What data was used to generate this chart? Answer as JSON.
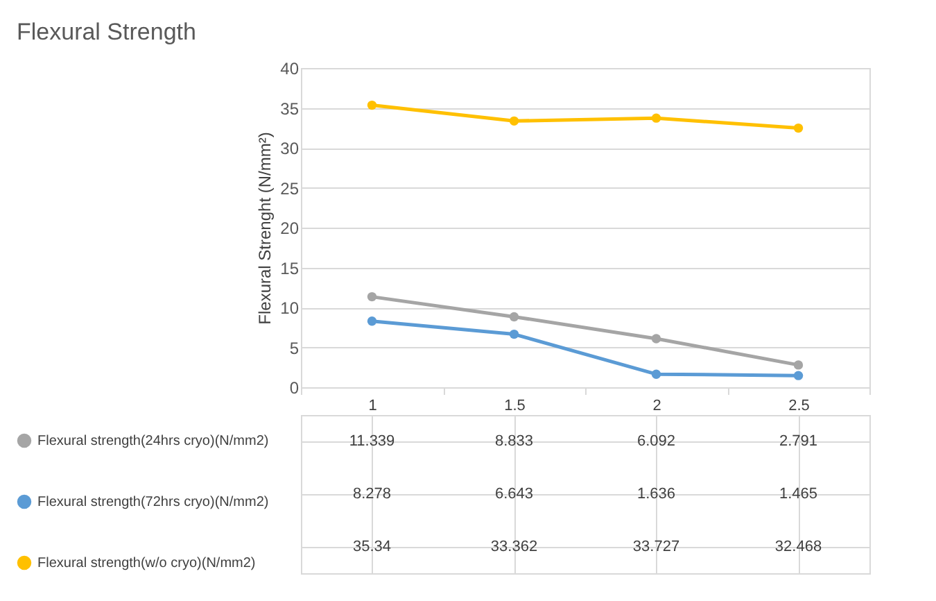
{
  "chart_data": {
    "type": "line",
    "title": "Flexural Strength",
    "ylabel": "Flexural Strenght (N/mm²)",
    "categories": [
      "1",
      "1.5",
      "2",
      "2.5"
    ],
    "series": [
      {
        "name": "Flexural strength(24hrs cryo)(N/mm2)",
        "color": "#a5a5a5",
        "values": [
          11.339,
          8.833,
          6.092,
          2.791
        ]
      },
      {
        "name": "Flexural strength(72hrs cryo)(N/mm2)",
        "color": "#5b9bd5",
        "values": [
          8.278,
          6.643,
          1.636,
          1.465
        ]
      },
      {
        "name": "Flexural strength(w/o cryo)(N/mm2)",
        "color": "#ffc000",
        "values": [
          35.34,
          33.362,
          33.727,
          32.468
        ]
      }
    ],
    "ylim": [
      0,
      40
    ],
    "yticks": [
      0,
      5,
      10,
      15,
      20,
      25,
      30,
      35,
      40
    ],
    "grid": "y",
    "marker": "circle",
    "line_style": "solid",
    "legend": "bottom",
    "data_labels": true
  }
}
